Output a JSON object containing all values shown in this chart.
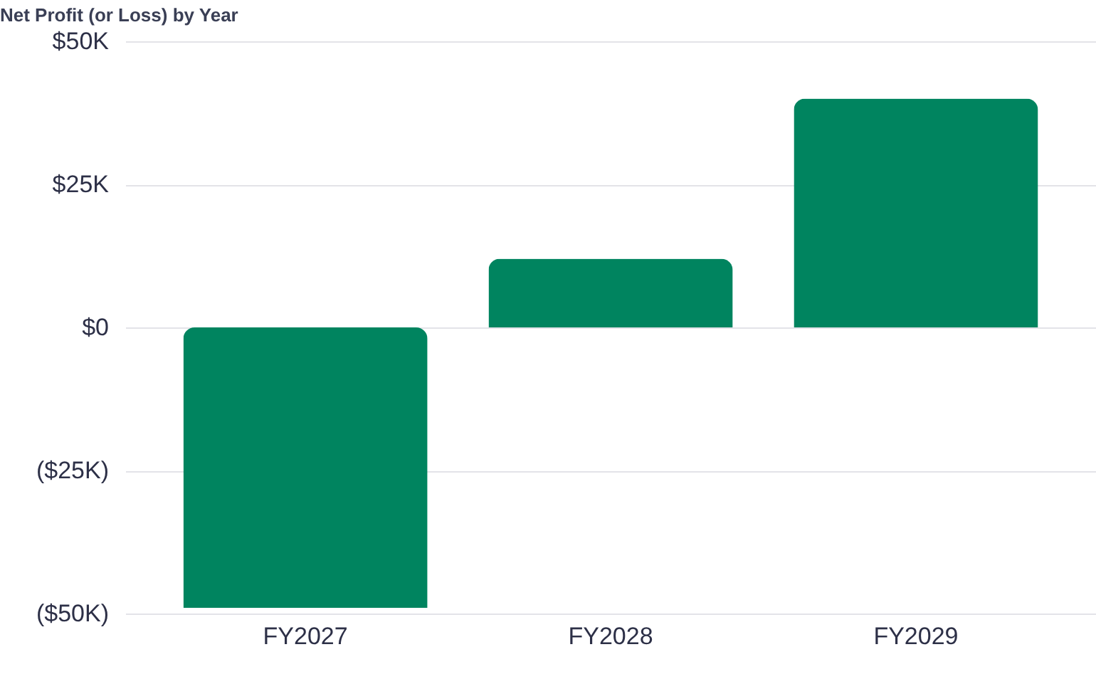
{
  "chart_data": {
    "type": "bar",
    "title": "Net Profit (or Loss) by Year",
    "categories": [
      "FY2027",
      "FY2028",
      "FY2029"
    ],
    "values": [
      -49000,
      12000,
      40000
    ],
    "color": "#00845f",
    "ylim": [
      -50000,
      50000
    ],
    "yticks": [
      {
        "value": -50000,
        "label": "($50K)"
      },
      {
        "value": -25000,
        "label": "($25K)"
      },
      {
        "value": 0,
        "label": "$0"
      },
      {
        "value": 25000,
        "label": "$25K"
      },
      {
        "value": 50000,
        "label": "$50K"
      }
    ],
    "grid": "y"
  }
}
